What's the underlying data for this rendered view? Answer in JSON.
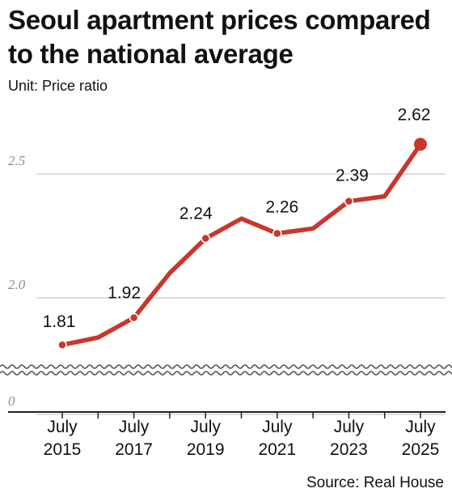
{
  "chart_data": {
    "type": "line",
    "title": "Seoul apartment prices compared to the national average",
    "unit_label": "Unit: Price ratio",
    "source": "Source: Real House",
    "color": "#c8372d",
    "y_ticks": [
      {
        "value": 2.5,
        "label": "2.5"
      },
      {
        "value": 2.0,
        "label": "2.0"
      },
      {
        "value": 0,
        "label": "0"
      }
    ],
    "x_tick_labels": [
      {
        "line1": "July",
        "line2": "2015"
      },
      {
        "line1": "July",
        "line2": "2017"
      },
      {
        "line1": "July",
        "line2": "2019"
      },
      {
        "line1": "July",
        "line2": "2021"
      },
      {
        "line1": "July",
        "line2": "2023"
      },
      {
        "line1": "July",
        "line2": "2025"
      }
    ],
    "series": [
      {
        "points": [
          {
            "x": "Jul 2015",
            "y": 1.81,
            "label": "1.81",
            "marker": true
          },
          {
            "x": "Jul 2016",
            "y": 1.84,
            "marker": false
          },
          {
            "x": "Jul 2017",
            "y": 1.92,
            "label": "1.92",
            "marker": true
          },
          {
            "x": "Jul 2018",
            "y": 2.1,
            "marker": false
          },
          {
            "x": "Jul 2019",
            "y": 2.24,
            "label": "2.24",
            "marker": true
          },
          {
            "x": "Jul 2020",
            "y": 2.32,
            "marker": false
          },
          {
            "x": "Jul 2021",
            "y": 2.26,
            "label": "2.26",
            "marker": true
          },
          {
            "x": "Jul 2022",
            "y": 2.28,
            "marker": false
          },
          {
            "x": "Jul 2023",
            "y": 2.39,
            "label": "2.39",
            "marker": true
          },
          {
            "x": "Jul 2024",
            "y": 2.41,
            "marker": false
          },
          {
            "x": "Jul 2025",
            "y": 2.62,
            "label": "2.62",
            "marker": true,
            "emphasis": true
          }
        ]
      }
    ],
    "y_break": true,
    "grid": true
  }
}
